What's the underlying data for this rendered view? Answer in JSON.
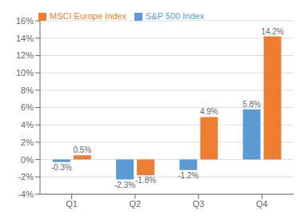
{
  "chart_data": {
    "type": "bar",
    "categories": [
      "Q1",
      "Q2",
      "Q3",
      "Q4"
    ],
    "series": [
      {
        "name": "S&P 500 Index",
        "color": "#5b9bd5",
        "values": [
          -0.3,
          -2.3,
          -1.2,
          5.8
        ],
        "value_labels": [
          "-0.3%",
          "-2.3%",
          "-1.2%",
          "5.8%"
        ]
      },
      {
        "name": "MSCI Europe Index",
        "color": "#ed7d31",
        "values": [
          0.5,
          -1.8,
          4.9,
          14.2
        ],
        "value_labels": [
          "0.5%",
          "-1.8%",
          "4.9%",
          "14.2%"
        ]
      }
    ],
    "ylim": [
      -4,
      16
    ],
    "yticks": [
      {
        "value": -4,
        "label": "-4%"
      },
      {
        "value": -2,
        "label": "-2%"
      },
      {
        "value": 0,
        "label": "0%"
      },
      {
        "value": 2,
        "label": "2%"
      },
      {
        "value": 4,
        "label": "4%"
      },
      {
        "value": 6,
        "label": "6%"
      },
      {
        "value": 8,
        "label": "8%"
      },
      {
        "value": 10,
        "label": "10%"
      },
      {
        "value": 12,
        "label": "12%"
      },
      {
        "value": 14,
        "label": "14%"
      },
      {
        "value": 16,
        "label": "16%"
      }
    ],
    "grid": true,
    "legend": "upper left",
    "data_labels": true
  }
}
